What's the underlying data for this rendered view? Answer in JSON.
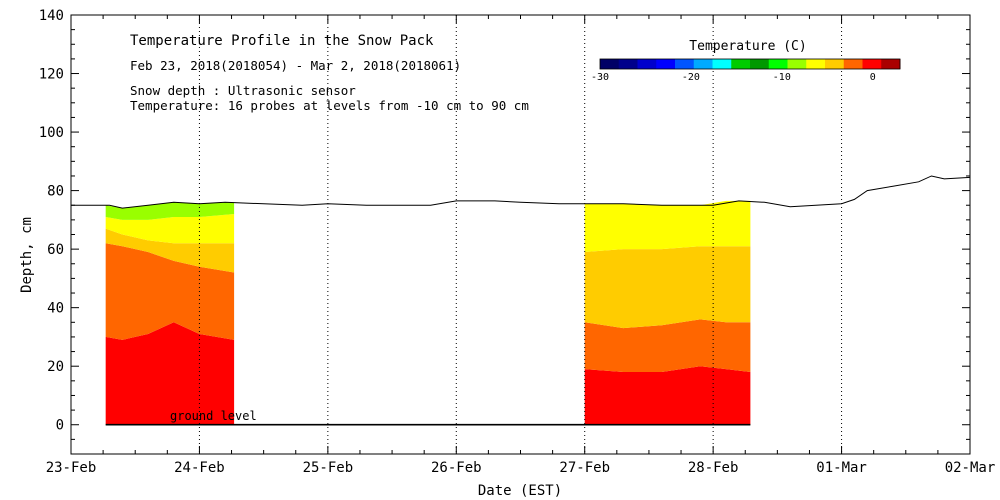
{
  "chart_data": {
    "type": "area",
    "title": "Temperature Profile in the Snow Pack",
    "subtitle": "Feb 23, 2018(2018054) - Mar  2, 2018(2018061)",
    "notes": [
      "Snow depth : Ultrasonic sensor",
      "Temperature: 16 probes at levels from -10 cm to 90 cm"
    ],
    "xlabel": "Date (EST)",
    "ylabel": "Depth, cm",
    "xlim": [
      0,
      7
    ],
    "ylim": [
      -10,
      140
    ],
    "x_ticks": [
      {
        "x": 0,
        "label": "23-Feb"
      },
      {
        "x": 1,
        "label": "24-Feb"
      },
      {
        "x": 2,
        "label": "25-Feb"
      },
      {
        "x": 3,
        "label": "26-Feb"
      },
      {
        "x": 4,
        "label": "27-Feb"
      },
      {
        "x": 5,
        "label": "28-Feb"
      },
      {
        "x": 6,
        "label": "01-Mar"
      },
      {
        "x": 7,
        "label": "02-Mar"
      }
    ],
    "y_ticks": [
      0,
      20,
      40,
      60,
      80,
      100,
      120,
      140
    ],
    "ground_label": "ground level",
    "ground_level": 0,
    "snow_depth": {
      "x": [
        0,
        0.3,
        0.4,
        0.6,
        0.8,
        1.0,
        1.2,
        1.5,
        1.8,
        2.0,
        2.3,
        2.5,
        2.8,
        3.0,
        3.3,
        3.5,
        3.8,
        4.0,
        4.3,
        4.6,
        4.9,
        5.0,
        5.2,
        5.4,
        5.6,
        5.8,
        6.0,
        6.1,
        6.2,
        6.4,
        6.6,
        6.7,
        6.8,
        7.0
      ],
      "y": [
        75,
        75,
        74,
        75,
        76,
        75.5,
        76,
        75.5,
        75,
        75.5,
        75,
        75,
        75,
        76.5,
        76.5,
        76,
        75.5,
        75.5,
        75.5,
        75,
        75,
        75,
        76.5,
        76,
        74.5,
        75,
        75.5,
        77,
        80,
        81.5,
        83,
        85,
        84,
        84.5
      ]
    },
    "temperature_segments": [
      {
        "x": [
          0.27,
          0.4,
          0.6,
          0.8,
          1.0,
          1.27
        ],
        "bands": [
          {
            "color": "#ff0000",
            "top": [
              30,
              29,
              31,
              35,
              31,
              29
            ]
          },
          {
            "color": "#ff6600",
            "top": [
              62,
              61,
              59,
              56,
              54,
              52
            ]
          },
          {
            "color": "#ffcc00",
            "top": [
              67,
              65,
              63,
              62,
              62,
              62
            ]
          },
          {
            "color": "#ffff00",
            "top": [
              71,
              70,
              70,
              71,
              71,
              72
            ]
          },
          {
            "color": "#99ff00",
            "top": [
              75,
              74,
              75,
              76,
              75.5,
              76
            ]
          }
        ]
      },
      {
        "x": [
          4.0,
          4.3,
          4.6,
          4.9,
          5.1,
          5.29
        ],
        "bands": [
          {
            "color": "#ff0000",
            "top": [
              19,
              18,
              18,
              20,
              19,
              18
            ]
          },
          {
            "color": "#ff6600",
            "top": [
              35,
              33,
              34,
              36,
              35,
              35
            ]
          },
          {
            "color": "#ffcc00",
            "top": [
              59,
              60,
              60,
              61,
              61,
              61
            ]
          },
          {
            "color": "#ffff00",
            "top": [
              75.5,
              75.5,
              75,
              75,
              76.5,
              76.5
            ]
          }
        ]
      }
    ],
    "colorbar": {
      "title": "Temperature (C)",
      "range": [
        -30,
        3
      ],
      "tick_labels": [
        {
          "v": -30,
          "label": "-30"
        },
        {
          "v": -20,
          "label": "-20"
        },
        {
          "v": -10,
          "label": "-10"
        },
        {
          "v": 0,
          "label": "0"
        }
      ],
      "colors": [
        "#000066",
        "#00008b",
        "#0000cd",
        "#0000ff",
        "#0055ff",
        "#00aaff",
        "#00ffff",
        "#00cc00",
        "#009900",
        "#00ff00",
        "#99ff00",
        "#ffff00",
        "#ffcc00",
        "#ff6600",
        "#ff0000",
        "#aa0000"
      ]
    }
  }
}
